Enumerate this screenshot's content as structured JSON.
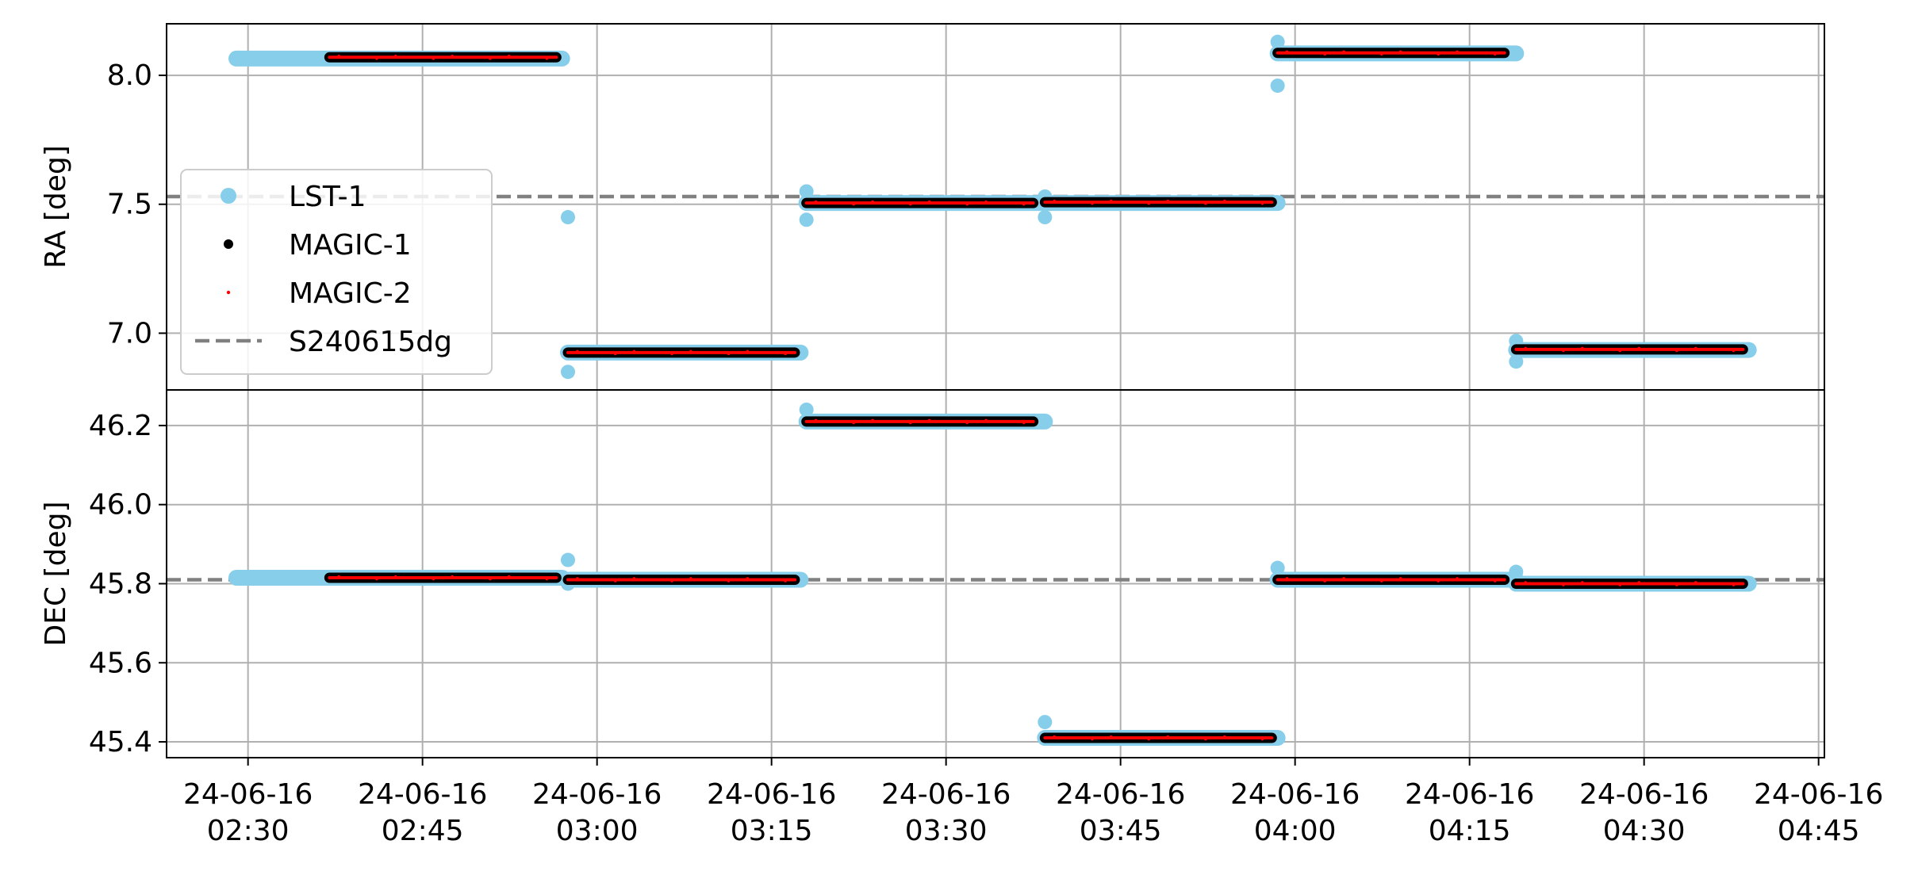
{
  "chart_data": [
    {
      "type": "scatter",
      "panel": "top",
      "ylabel": "RA [deg]",
      "ylim": [
        6.78,
        8.2
      ],
      "yticks": [
        7.0,
        7.5,
        8.0
      ],
      "ytick_labels": [
        "7.0",
        "7.5",
        "8.0"
      ],
      "grid": true,
      "legend": {
        "placement": "center-left",
        "entries": [
          "LST-1",
          "MAGIC-1",
          "MAGIC-2",
          "S240615dg"
        ]
      },
      "reference_line": {
        "name": "S240615dg",
        "value": 7.53,
        "style": "dashed",
        "color": "#808080"
      },
      "series": [
        {
          "name": "LST-1",
          "color": "#87CEEB",
          "segments": [
            {
              "start": "2024-06-16T02:29:00",
              "end": "2024-06-16T02:57:00",
              "value": 8.065
            },
            {
              "start": "2024-06-16T02:57:30",
              "end": "2024-06-16T03:17:30",
              "value": 6.925
            },
            {
              "start": "2024-06-16T03:18:00",
              "end": "2024-06-16T03:38:30",
              "value": 7.505
            },
            {
              "start": "2024-06-16T03:38:30",
              "end": "2024-06-16T03:58:30",
              "value": 7.505
            },
            {
              "start": "2024-06-16T03:58:30",
              "end": "2024-06-16T04:19:00",
              "value": 8.085
            },
            {
              "start": "2024-06-16T04:19:00",
              "end": "2024-06-16T04:39:00",
              "value": 6.935
            }
          ],
          "outliers": [
            {
              "time": "2024-06-16T02:57:30",
              "value": 7.45
            },
            {
              "time": "2024-06-16T02:57:30",
              "value": 6.85
            },
            {
              "time": "2024-06-16T03:18:00",
              "value": 7.44
            },
            {
              "time": "2024-06-16T03:18:00",
              "value": 7.55
            },
            {
              "time": "2024-06-16T03:38:30",
              "value": 7.45
            },
            {
              "time": "2024-06-16T03:38:30",
              "value": 7.53
            },
            {
              "time": "2024-06-16T03:58:30",
              "value": 7.96
            },
            {
              "time": "2024-06-16T03:58:30",
              "value": 8.13
            },
            {
              "time": "2024-06-16T04:19:00",
              "value": 6.89
            },
            {
              "time": "2024-06-16T04:19:00",
              "value": 6.97
            }
          ]
        },
        {
          "name": "MAGIC-1",
          "color": "#000000",
          "segments": [
            {
              "start": "2024-06-16T02:37:00",
              "end": "2024-06-16T02:56:30",
              "value": 8.07
            },
            {
              "start": "2024-06-16T02:57:30",
              "end": "2024-06-16T03:17:00",
              "value": 6.925
            },
            {
              "start": "2024-06-16T03:18:00",
              "end": "2024-06-16T03:37:30",
              "value": 7.505
            },
            {
              "start": "2024-06-16T03:38:30",
              "end": "2024-06-16T03:58:00",
              "value": 7.508
            },
            {
              "start": "2024-06-16T03:58:30",
              "end": "2024-06-16T04:18:00",
              "value": 8.087
            },
            {
              "start": "2024-06-16T04:19:00",
              "end": "2024-06-16T04:38:30",
              "value": 6.937
            }
          ]
        },
        {
          "name": "MAGIC-2",
          "color": "#FF0000",
          "segments": [
            {
              "start": "2024-06-16T02:37:00",
              "end": "2024-06-16T02:56:30",
              "value": 8.07
            },
            {
              "start": "2024-06-16T02:57:30",
              "end": "2024-06-16T03:17:00",
              "value": 6.925
            },
            {
              "start": "2024-06-16T03:18:00",
              "end": "2024-06-16T03:37:30",
              "value": 7.505
            },
            {
              "start": "2024-06-16T03:38:30",
              "end": "2024-06-16T03:58:00",
              "value": 7.508
            },
            {
              "start": "2024-06-16T03:58:30",
              "end": "2024-06-16T04:18:00",
              "value": 8.087
            },
            {
              "start": "2024-06-16T04:19:00",
              "end": "2024-06-16T04:38:30",
              "value": 6.937
            }
          ]
        }
      ]
    },
    {
      "type": "scatter",
      "panel": "bottom",
      "ylabel": "DEC [deg]",
      "ylim": [
        45.36,
        46.29
      ],
      "yticks": [
        45.4,
        45.6,
        45.8,
        46.0,
        46.2
      ],
      "ytick_labels": [
        "45.4",
        "45.6",
        "45.8",
        "46.0",
        "46.2"
      ],
      "grid": true,
      "reference_line": {
        "name": "S240615dg",
        "value": 45.81,
        "style": "dashed",
        "color": "#808080"
      },
      "xlim": [
        "2024-06-16T02:23:00",
        "2024-06-16T04:45:30"
      ],
      "xticks": [
        "2024-06-16T02:30:00",
        "2024-06-16T02:45:00",
        "2024-06-16T03:00:00",
        "2024-06-16T03:15:00",
        "2024-06-16T03:30:00",
        "2024-06-16T03:45:00",
        "2024-06-16T04:00:00",
        "2024-06-16T04:15:00",
        "2024-06-16T04:30:00",
        "2024-06-16T04:45:00"
      ],
      "xtick_labels": [
        [
          "24-06-16",
          "02:30"
        ],
        [
          "24-06-16",
          "02:45"
        ],
        [
          "24-06-16",
          "03:00"
        ],
        [
          "24-06-16",
          "03:15"
        ],
        [
          "24-06-16",
          "03:30"
        ],
        [
          "24-06-16",
          "03:45"
        ],
        [
          "24-06-16",
          "04:00"
        ],
        [
          "24-06-16",
          "04:15"
        ],
        [
          "24-06-16",
          "04:30"
        ],
        [
          "24-06-16",
          "04:45"
        ]
      ],
      "series": [
        {
          "name": "LST-1",
          "color": "#87CEEB",
          "segments": [
            {
              "start": "2024-06-16T02:29:00",
              "end": "2024-06-16T02:57:00",
              "value": 45.815
            },
            {
              "start": "2024-06-16T02:57:30",
              "end": "2024-06-16T03:17:30",
              "value": 45.81
            },
            {
              "start": "2024-06-16T03:18:00",
              "end": "2024-06-16T03:38:30",
              "value": 46.21
            },
            {
              "start": "2024-06-16T03:38:30",
              "end": "2024-06-16T03:58:30",
              "value": 45.41
            },
            {
              "start": "2024-06-16T03:58:30",
              "end": "2024-06-16T04:19:00",
              "value": 45.81
            },
            {
              "start": "2024-06-16T04:19:00",
              "end": "2024-06-16T04:39:00",
              "value": 45.8
            }
          ],
          "outliers": [
            {
              "time": "2024-06-16T02:57:30",
              "value": 45.86
            },
            {
              "time": "2024-06-16T02:57:30",
              "value": 45.8
            },
            {
              "time": "2024-06-16T03:18:00",
              "value": 46.24
            },
            {
              "time": "2024-06-16T03:38:30",
              "value": 45.45
            },
            {
              "time": "2024-06-16T03:58:30",
              "value": 45.84
            },
            {
              "time": "2024-06-16T04:19:00",
              "value": 45.83
            }
          ]
        },
        {
          "name": "MAGIC-1",
          "color": "#000000",
          "segments": [
            {
              "start": "2024-06-16T02:37:00",
              "end": "2024-06-16T02:56:30",
              "value": 45.815
            },
            {
              "start": "2024-06-16T02:57:30",
              "end": "2024-06-16T03:17:00",
              "value": 45.81
            },
            {
              "start": "2024-06-16T03:18:00",
              "end": "2024-06-16T03:37:30",
              "value": 46.21
            },
            {
              "start": "2024-06-16T03:38:30",
              "end": "2024-06-16T03:58:00",
              "value": 45.41
            },
            {
              "start": "2024-06-16T03:58:30",
              "end": "2024-06-16T04:18:00",
              "value": 45.81
            },
            {
              "start": "2024-06-16T04:19:00",
              "end": "2024-06-16T04:38:30",
              "value": 45.8
            }
          ]
        },
        {
          "name": "MAGIC-2",
          "color": "#FF0000",
          "segments": [
            {
              "start": "2024-06-16T02:37:00",
              "end": "2024-06-16T02:56:30",
              "value": 45.815
            },
            {
              "start": "2024-06-16T02:57:30",
              "end": "2024-06-16T03:17:00",
              "value": 45.81
            },
            {
              "start": "2024-06-16T03:18:00",
              "end": "2024-06-16T03:37:30",
              "value": 46.21
            },
            {
              "start": "2024-06-16T03:38:30",
              "end": "2024-06-16T03:58:00",
              "value": 45.41
            },
            {
              "start": "2024-06-16T03:58:30",
              "end": "2024-06-16T04:18:00",
              "value": 45.81
            },
            {
              "start": "2024-06-16T04:19:00",
              "end": "2024-06-16T04:38:30",
              "value": 45.8
            }
          ]
        }
      ]
    }
  ]
}
